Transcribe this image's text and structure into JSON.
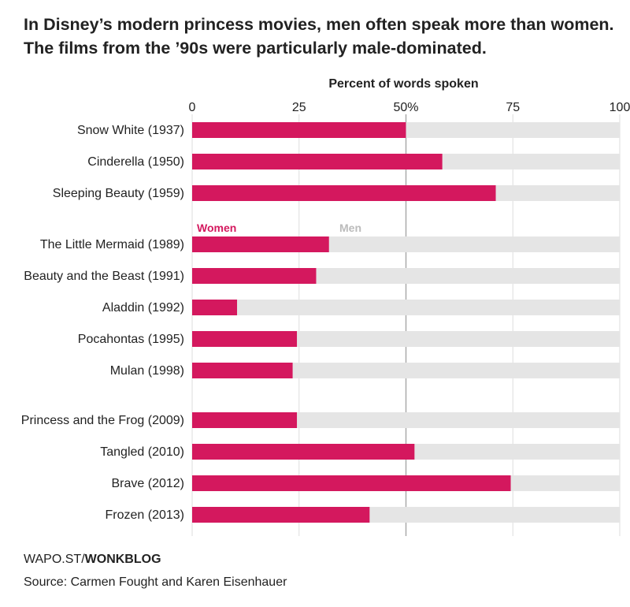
{
  "headline": "In Disney’s modern princess movies, men often speak more than women. The films from the ’90s were particularly male-dominated.",
  "colors": {
    "women": "#d4185e",
    "men": "#e5e5e5",
    "grid": "#dddddd",
    "midline": "#aaaaaa",
    "men_label": "#bbbbbb"
  },
  "chart_data": {
    "type": "bar",
    "orientation": "horizontal",
    "stacked": true,
    "title": "Percent of words spoken",
    "xlim": [
      0,
      100
    ],
    "ticks": [
      0,
      25,
      50,
      75,
      100
    ],
    "tick_labels": [
      "0",
      "25",
      "50%",
      "75",
      "100"
    ],
    "categories": [
      "Snow White (1937)",
      "Cinderella (1950)",
      "Sleeping Beauty (1959)",
      "The Little Mermaid (1989)",
      "Beauty and the Beast (1991)",
      "Aladdin (1992)",
      "Pocahontas (1995)",
      "Mulan (1998)",
      "Princess and the Frog (2009)",
      "Tangled (2010)",
      "Brave (2012)",
      "Frozen (2013)"
    ],
    "groups": [
      [
        0,
        1,
        2
      ],
      [
        3,
        4,
        5,
        6,
        7
      ],
      [
        8,
        9,
        10,
        11
      ]
    ],
    "series": [
      {
        "name": "Women",
        "values": [
          50,
          58.5,
          71,
          32,
          29,
          10.5,
          24.5,
          23.5,
          24.5,
          52,
          74.5,
          41.5
        ]
      },
      {
        "name": "Men",
        "values": [
          50,
          41.5,
          29,
          68,
          71,
          89.5,
          75.5,
          76.5,
          75.5,
          48,
          25.5,
          58.5
        ]
      }
    ]
  },
  "footer": {
    "brand_prefix": "WAPO.ST/",
    "brand_bold": "WONKBLOG",
    "source": "Source: Carmen Fought and Karen Eisenhauer"
  }
}
